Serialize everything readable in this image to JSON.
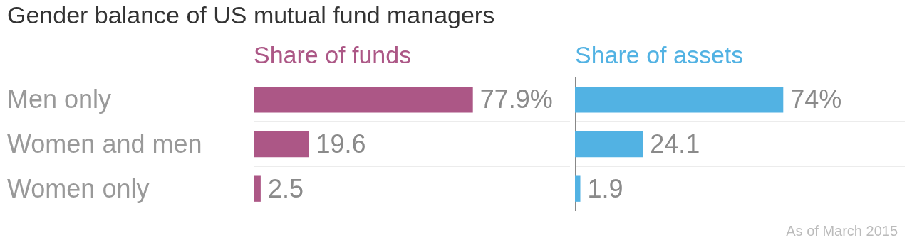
{
  "chart_data": [
    {
      "type": "bar",
      "orientation": "horizontal",
      "title": "Gender balance of US mutual fund managers",
      "subtitle": "Share of funds",
      "categories": [
        "Men only",
        "Women and men",
        "Women only"
      ],
      "values": [
        77.9,
        19.6,
        2.5
      ],
      "value_labels": [
        "77.9%",
        "19.6",
        "2.5"
      ],
      "color": "#ac5786",
      "grid": "y",
      "tick_labels": "y"
    },
    {
      "type": "bar",
      "orientation": "horizontal",
      "subtitle": "Share of assets",
      "categories": [
        null,
        null,
        null
      ],
      "values": [
        74,
        24.1,
        1.9
      ],
      "value_labels": [
        "74%",
        "24.1",
        "1.9"
      ],
      "color": "#52b2e3",
      "grid": "y",
      "tick_labels": false,
      "annotations": [
        "As of March 2015"
      ]
    }
  ]
}
